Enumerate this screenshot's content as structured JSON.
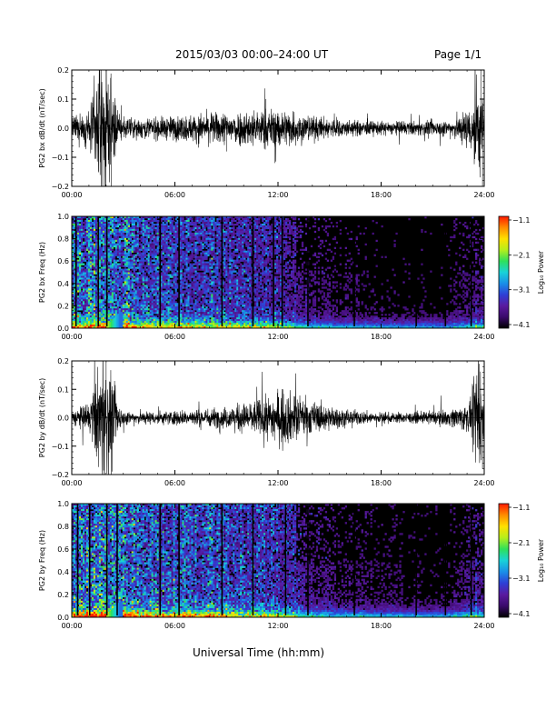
{
  "header": {
    "title": "2015/03/03  00:00–24:00 UT",
    "page": "Page 1/1"
  },
  "x_axis_title": "Universal Time (hh:mm)",
  "colors": {
    "trace": "#000000",
    "spectrogram_background": "#000000",
    "colormap": [
      "#000000",
      "#3a0a6b",
      "#5a1aa0",
      "#2e3fd6",
      "#1a8fe8",
      "#19d3d8",
      "#2ee05a",
      "#b6ee1c",
      "#ffe000",
      "#ff8c00",
      "#ff1a00"
    ]
  },
  "chart_data": [
    {
      "type": "line",
      "ylabel": "PG2 bx dB/dt (nT/sec)",
      "ylim": [
        -0.2,
        0.2
      ],
      "yticks": [
        "0.2",
        "0.1",
        "0.0",
        "−0.1",
        "−0.2"
      ],
      "xlim": [
        0,
        24
      ],
      "xticks": [
        "00:00",
        "06:00",
        "12:00",
        "18:00",
        "24:00"
      ],
      "envelope_hours": [
        0.0,
        1.0,
        1.6,
        2.0,
        2.6,
        3.0,
        5.0,
        7.0,
        9.0,
        11.0,
        12.5,
        14.0,
        16.0,
        18.0,
        20.0,
        22.0,
        23.2,
        23.6,
        24.0
      ],
      "envelope_amplitude": [
        0.04,
        0.06,
        0.22,
        0.22,
        0.09,
        0.035,
        0.04,
        0.05,
        0.06,
        0.07,
        0.07,
        0.045,
        0.03,
        0.025,
        0.025,
        0.03,
        0.08,
        0.2,
        0.1
      ],
      "spikes": [
        [
          2.0,
          0.22
        ],
        [
          2.3,
          -0.2
        ],
        [
          1.8,
          -0.2
        ],
        [
          9.0,
          -0.08
        ],
        [
          11.3,
          0.1
        ],
        [
          11.8,
          -0.12
        ],
        [
          23.8,
          0.2
        ],
        [
          23.9,
          -0.2
        ]
      ]
    },
    {
      "type": "heatmap",
      "ylabel": "PG2 bx Freq (Hz)",
      "ylim": [
        0,
        1
      ],
      "yticks": [
        "1.0",
        "0.8",
        "0.6",
        "0.4",
        "0.2",
        "0.0"
      ],
      "xlim": [
        0,
        24
      ],
      "xticks": [
        "00:00",
        "06:00",
        "12:00",
        "18:00",
        "24:00"
      ],
      "colorbar": {
        "label": "Log₁₀ Power",
        "range": [
          -4.1,
          -1.1
        ],
        "ticks": [
          "−1.1",
          "−2.1",
          "−3.1",
          "−4.1"
        ]
      },
      "dark_vertical_bands_hours": [
        0.2,
        1.5,
        2.0,
        5.1,
        6.2,
        8.7,
        10.5,
        11.7,
        12.2,
        13.7,
        16.4,
        20.0,
        21.7,
        23.2
      ],
      "activity_hours": [
        0,
        2,
        4,
        8,
        12,
        14,
        16,
        20,
        22,
        23.5,
        24
      ],
      "activity_level": [
        0.55,
        0.65,
        0.5,
        0.45,
        0.35,
        0.2,
        0.15,
        0.12,
        0.12,
        0.25,
        0.2
      ]
    },
    {
      "type": "line",
      "ylabel": "PG2 by dB/dt (nT/sec)",
      "ylim": [
        -0.2,
        0.2
      ],
      "yticks": [
        "0.2",
        "0.1",
        "0.0",
        "−0.1",
        "−0.2"
      ],
      "xlim": [
        0,
        24
      ],
      "xticks": [
        "00:00",
        "06:00",
        "12:00",
        "18:00",
        "24:00"
      ],
      "envelope_hours": [
        0.0,
        1.0,
        1.6,
        2.0,
        2.6,
        3.0,
        5.0,
        7.0,
        9.0,
        11.0,
        12.5,
        14.0,
        16.0,
        18.0,
        20.0,
        22.0,
        23.2,
        23.6,
        24.0
      ],
      "envelope_amplitude": [
        0.03,
        0.05,
        0.2,
        0.22,
        0.08,
        0.025,
        0.025,
        0.03,
        0.04,
        0.07,
        0.1,
        0.06,
        0.03,
        0.02,
        0.02,
        0.03,
        0.06,
        0.2,
        0.08
      ],
      "spikes": [
        [
          2.0,
          0.22
        ],
        [
          2.3,
          -0.2
        ],
        [
          1.9,
          -0.2
        ],
        [
          11.8,
          -0.08
        ],
        [
          12.3,
          0.1
        ],
        [
          23.7,
          0.19
        ],
        [
          23.9,
          -0.18
        ]
      ]
    },
    {
      "type": "heatmap",
      "ylabel": "PG2 by Freq (Hz)",
      "ylim": [
        0,
        1
      ],
      "yticks": [
        "1.0",
        "0.8",
        "0.6",
        "0.4",
        "0.2",
        "0.0"
      ],
      "xlim": [
        0,
        24
      ],
      "xticks": [
        "00:00",
        "06:00",
        "12:00",
        "18:00",
        "24:00"
      ],
      "colorbar": {
        "label": "Log₁₀ Power",
        "range": [
          -4.1,
          -1.1
        ],
        "ticks": [
          "−1.1",
          "−2.1",
          "−3.1",
          "−4.1"
        ]
      },
      "dark_vertical_bands_hours": [
        0.3,
        1.0,
        2.0,
        2.6,
        5.1,
        6.2,
        8.7,
        10.5,
        12.4,
        13.7,
        16.4,
        20.0,
        21.7,
        23.2
      ],
      "activity_hours": [
        0,
        2,
        4,
        8,
        12,
        14,
        16,
        20,
        22,
        23.5,
        24
      ],
      "activity_level": [
        0.6,
        0.7,
        0.55,
        0.5,
        0.4,
        0.25,
        0.18,
        0.14,
        0.14,
        0.3,
        0.2
      ]
    }
  ]
}
